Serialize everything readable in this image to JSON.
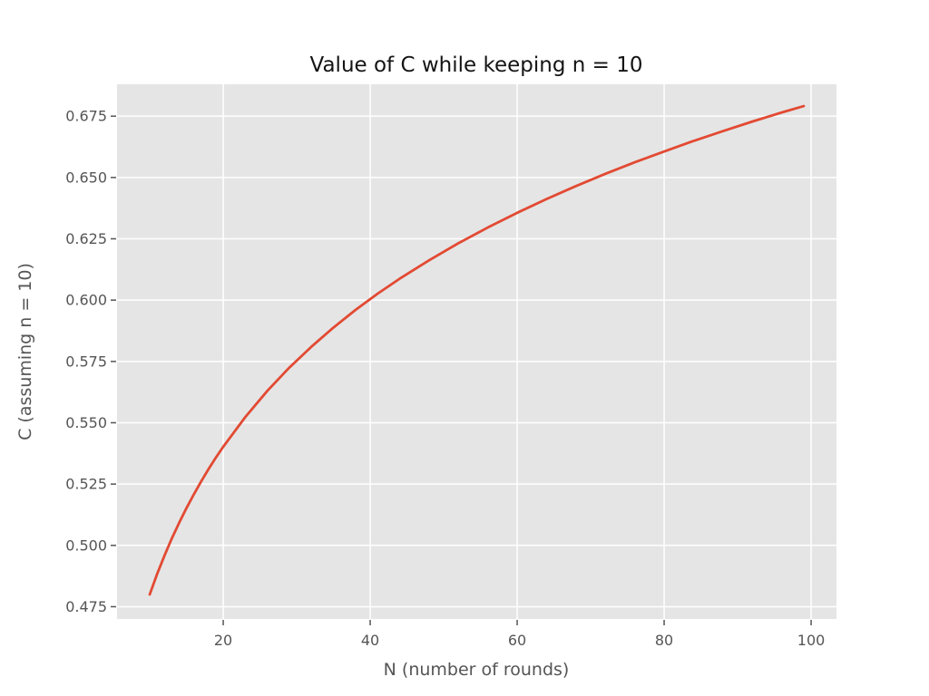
{
  "chart_data": {
    "type": "line",
    "title": "Value of C while keeping n = 10",
    "xlabel": "N (number of rounds)",
    "ylabel": "C (assuming n = 10)",
    "series": [
      {
        "name": "C",
        "x": [
          10,
          11,
          12,
          13,
          14,
          15,
          16,
          17,
          18,
          19,
          20,
          23,
          26,
          29,
          32,
          35,
          38,
          41,
          44,
          48,
          52,
          56,
          60,
          64,
          68,
          72,
          76,
          80,
          84,
          88,
          92,
          96,
          99
        ],
        "y": [
          0.48,
          0.4883,
          0.4958,
          0.5028,
          0.5092,
          0.5152,
          0.5208,
          0.5261,
          0.5311,
          0.5358,
          0.5402,
          0.5523,
          0.563,
          0.5725,
          0.581,
          0.5888,
          0.596,
          0.6026,
          0.6087,
          0.6162,
          0.6232,
          0.6296,
          0.6356,
          0.6412,
          0.6465,
          0.6515,
          0.6562,
          0.6606,
          0.6649,
          0.6689,
          0.6728,
          0.6765,
          0.6791
        ]
      }
    ],
    "xticks": [
      20,
      40,
      60,
      80,
      100
    ],
    "xtick_labels": [
      "20",
      "40",
      "60",
      "80",
      "100"
    ],
    "yticks": [
      0.475,
      0.5,
      0.525,
      0.55,
      0.575,
      0.6,
      0.625,
      0.65,
      0.675
    ],
    "ytick_labels": [
      "0.475",
      "0.500",
      "0.525",
      "0.550",
      "0.575",
      "0.600",
      "0.625",
      "0.650",
      "0.675"
    ],
    "xlim": [
      5.55,
      103.45
    ],
    "ylim": [
      0.47,
      0.688
    ],
    "grid": true,
    "legend_position": "none",
    "colors": {
      "line": "#E24A33",
      "plot_background": "#E5E5E5",
      "figure_background": "#FFFFFF",
      "grid": "#FFFFFF",
      "tick_text": "#555555",
      "axis_label_text": "#555555",
      "title_text": "#141414",
      "tick_mark": "#555555"
    }
  }
}
